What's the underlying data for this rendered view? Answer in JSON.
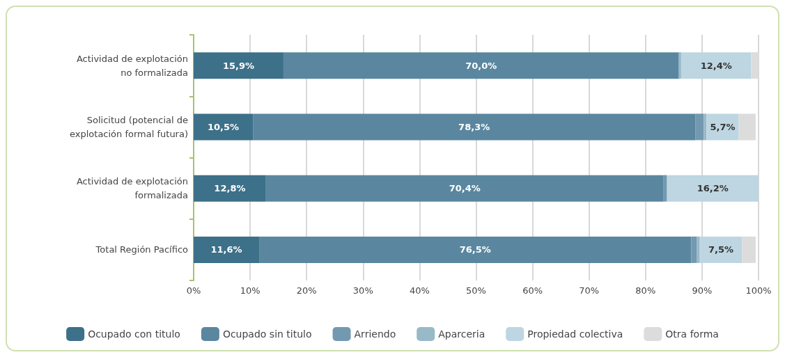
{
  "chart_data": {
    "type": "bar",
    "orientation": "horizontal",
    "stacked": true,
    "categories": [
      "Actividad de explotación\nno formalizada",
      "Solicitud (potencial de\nexplotación formal futura)",
      "Actividad de explotación\nformalizada",
      "Total Región Pacífico"
    ],
    "series": [
      {
        "name": "Ocupado con titulo",
        "color": "#3d7089",
        "values": [
          15.9,
          10.5,
          12.8,
          11.6
        ],
        "value_labels": [
          "15,9%",
          "10,5%",
          "12,8%",
          "11,6%"
        ]
      },
      {
        "name": "Ocupado sin titulo",
        "color": "#5a879f",
        "values": [
          70.0,
          78.3,
          70.4,
          76.5
        ],
        "value_labels": [
          "70,0%",
          "78,3%",
          "70,4%",
          "76,5%"
        ]
      },
      {
        "name": "Arriendo",
        "color": "#7399b0",
        "values": [
          null,
          1.5,
          0.6,
          1.0
        ],
        "value_labels": [
          null,
          null,
          null,
          null
        ]
      },
      {
        "name": "Aparceria",
        "color": "#98b9c8",
        "values": [
          0.4,
          0.5,
          null,
          0.5
        ],
        "value_labels": [
          null,
          null,
          null,
          null
        ]
      },
      {
        "name": "Propiedad colectiva",
        "color": "#bdd6e1",
        "values": [
          12.4,
          5.7,
          16.2,
          7.5
        ],
        "value_labels": [
          "12,4%",
          "5,7%",
          "16,2%",
          "7,5%"
        ]
      },
      {
        "name": "Otra forma",
        "color": "#dcdcdc",
        "values": [
          1.3,
          3.0,
          null,
          2.4
        ],
        "value_labels": [
          null,
          null,
          null,
          null
        ]
      }
    ],
    "xlim": [
      0,
      100
    ],
    "xticks": [
      {
        "value": 0,
        "label": "0%"
      },
      {
        "value": 10,
        "label": "10%"
      },
      {
        "value": 20,
        "label": "20%"
      },
      {
        "value": 30,
        "label": "30%"
      },
      {
        "value": 40,
        "label": "40%"
      },
      {
        "value": 50,
        "label": "50%"
      },
      {
        "value": 60,
        "label": "60%"
      },
      {
        "value": 70,
        "label": "70%"
      },
      {
        "value": 80,
        "label": "80%"
      },
      {
        "value": 90,
        "label": "90%"
      },
      {
        "value": 100,
        "label": "100%"
      }
    ],
    "grid": "x",
    "legend": "bottom"
  }
}
